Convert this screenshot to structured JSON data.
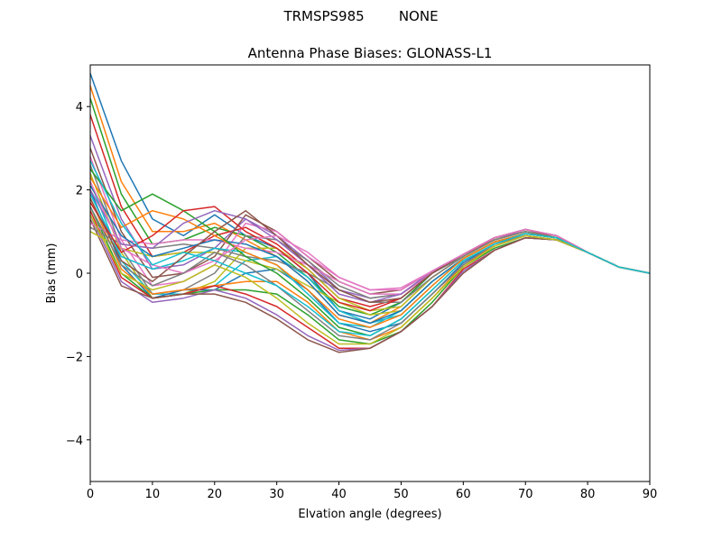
{
  "figure": {
    "suptitle": "TRMSPS985        NONE"
  },
  "chart_data": {
    "type": "line",
    "title": "Antenna Phase Biases: GLONASS-L1",
    "xlabel": "Elvation angle (degrees)",
    "ylabel": "Bias (mm)",
    "xlim": [
      0,
      90
    ],
    "ylim": [
      -5,
      5
    ],
    "xticks": [
      0,
      10,
      20,
      30,
      40,
      50,
      60,
      70,
      80,
      90
    ],
    "yticks": [
      -4,
      -2,
      0,
      2,
      4
    ],
    "ytick_labels": [
      "−4",
      "−2",
      "0",
      "2",
      "4"
    ],
    "grid": false,
    "legend": "none",
    "x": [
      0,
      5,
      10,
      15,
      20,
      25,
      30,
      35,
      40,
      45,
      50,
      55,
      60,
      65,
      70,
      75,
      80,
      85,
      90
    ],
    "color_cycle": [
      "#1f77b4",
      "#ff7f0e",
      "#2ca02c",
      "#d62728",
      "#9467bd",
      "#8c564b",
      "#e377c2",
      "#7f7f7f",
      "#bcbd22",
      "#17becf"
    ],
    "series": [
      {
        "values": [
          4.8,
          2.7,
          1.3,
          0.9,
          1.4,
          0.9,
          0.6,
          0.0,
          -0.9,
          -1.1,
          -0.7,
          0.0,
          0.4,
          0.8,
          1.0,
          0.85,
          0.5,
          0.15,
          0.0
        ]
      },
      {
        "values": [
          4.5,
          2.2,
          1.0,
          1.0,
          1.2,
          0.8,
          0.4,
          -0.2,
          -1.0,
          -1.2,
          -0.8,
          -0.1,
          0.4,
          0.8,
          1.0,
          0.85,
          0.5,
          0.15,
          0.0
        ]
      },
      {
        "values": [
          4.2,
          1.9,
          0.7,
          0.8,
          1.1,
          0.9,
          0.5,
          -0.1,
          -0.8,
          -1.0,
          -0.7,
          0.0,
          0.45,
          0.8,
          1.0,
          0.85,
          0.5,
          0.15,
          0.0
        ]
      },
      {
        "values": [
          3.8,
          1.6,
          0.4,
          0.5,
          0.9,
          1.1,
          0.7,
          0.1,
          -0.6,
          -0.8,
          -0.6,
          0.0,
          0.45,
          0.8,
          1.0,
          0.85,
          0.5,
          0.15,
          0.0
        ]
      },
      {
        "values": [
          3.3,
          1.3,
          0.1,
          0.2,
          0.6,
          1.3,
          0.9,
          0.3,
          -0.4,
          -0.6,
          -0.5,
          0.05,
          0.45,
          0.85,
          1.0,
          0.85,
          0.5,
          0.15,
          0.0
        ]
      },
      {
        "values": [
          3.0,
          1.0,
          -0.1,
          0.0,
          0.4,
          1.4,
          1.0,
          0.4,
          -0.2,
          -0.5,
          -0.4,
          0.05,
          0.45,
          0.85,
          1.05,
          0.85,
          0.5,
          0.15,
          0.0
        ]
      },
      {
        "values": [
          2.8,
          0.8,
          -0.3,
          -0.2,
          0.2,
          1.2,
          1.0,
          0.4,
          -0.1,
          -0.4,
          -0.35,
          0.05,
          0.45,
          0.85,
          1.05,
          0.9,
          0.5,
          0.15,
          0.0
        ]
      },
      {
        "values": [
          2.6,
          0.6,
          -0.5,
          -0.4,
          0.0,
          0.9,
          0.8,
          0.3,
          -0.3,
          -0.6,
          -0.5,
          0.0,
          0.4,
          0.8,
          1.0,
          0.85,
          0.5,
          0.15,
          0.0
        ]
      },
      {
        "values": [
          2.4,
          0.5,
          -0.6,
          -0.5,
          -0.2,
          0.6,
          0.6,
          0.1,
          -0.6,
          -0.9,
          -0.8,
          -0.1,
          0.4,
          0.8,
          1.0,
          0.85,
          0.5,
          0.15,
          0.0
        ]
      },
      {
        "values": [
          2.2,
          0.3,
          -0.5,
          -0.5,
          -0.3,
          0.3,
          0.4,
          -0.1,
          -0.9,
          -1.2,
          -1.0,
          -0.3,
          0.35,
          0.75,
          0.95,
          0.85,
          0.5,
          0.15,
          0.0
        ]
      },
      {
        "values": [
          2.0,
          0.2,
          -0.6,
          -0.4,
          -0.4,
          0.0,
          0.1,
          -0.4,
          -1.2,
          -1.4,
          -1.2,
          -0.5,
          0.25,
          0.7,
          0.9,
          0.8,
          0.5,
          0.15,
          0.0
        ]
      },
      {
        "values": [
          1.8,
          0.1,
          -0.5,
          -0.4,
          -0.3,
          -0.2,
          -0.2,
          -0.7,
          -1.4,
          -1.6,
          -1.3,
          -0.6,
          0.2,
          0.65,
          0.9,
          0.8,
          0.5,
          0.15,
          0.0
        ]
      },
      {
        "values": [
          1.6,
          0.0,
          -0.6,
          -0.5,
          -0.4,
          -0.4,
          -0.5,
          -1.0,
          -1.6,
          -1.7,
          -1.4,
          -0.7,
          0.15,
          0.6,
          0.85,
          0.8,
          0.5,
          0.15,
          0.0
        ]
      },
      {
        "values": [
          1.5,
          -0.1,
          -0.6,
          -0.5,
          -0.3,
          -0.5,
          -0.8,
          -1.3,
          -1.8,
          -1.8,
          -1.4,
          -0.8,
          0.1,
          0.55,
          0.85,
          0.8,
          0.5,
          0.15,
          0.0
        ]
      },
      {
        "values": [
          1.4,
          -0.2,
          -0.7,
          -0.6,
          -0.4,
          -0.6,
          -1.0,
          -1.5,
          -1.85,
          -1.8,
          -1.4,
          -0.8,
          0.05,
          0.55,
          0.85,
          0.8,
          0.5,
          0.15,
          0.0
        ]
      },
      {
        "values": [
          1.3,
          -0.3,
          -0.6,
          -0.5,
          -0.5,
          -0.7,
          -1.1,
          -1.6,
          -1.9,
          -1.8,
          -1.4,
          -0.8,
          0.0,
          0.55,
          0.85,
          0.8,
          0.5,
          0.15,
          0.0
        ]
      },
      {
        "values": [
          1.2,
          0.8,
          0.7,
          0.8,
          0.8,
          0.6,
          0.5,
          0.2,
          -0.2,
          -0.5,
          -0.5,
          0.0,
          0.45,
          0.85,
          1.05,
          0.9,
          0.5,
          0.15,
          0.0
        ]
      },
      {
        "values": [
          1.1,
          0.7,
          0.6,
          0.7,
          0.6,
          0.4,
          0.3,
          0.0,
          -0.4,
          -0.7,
          -0.7,
          -0.1,
          0.4,
          0.8,
          1.0,
          0.85,
          0.5,
          0.15,
          0.0
        ]
      },
      {
        "values": [
          1.0,
          0.6,
          0.4,
          0.5,
          0.5,
          0.3,
          0.1,
          -0.3,
          -0.7,
          -1.0,
          -0.9,
          -0.2,
          0.35,
          0.75,
          0.95,
          0.85,
          0.5,
          0.15,
          0.0
        ]
      },
      {
        "values": [
          1.9,
          0.4,
          0.1,
          0.3,
          0.6,
          0.5,
          0.2,
          -0.5,
          -1.2,
          -1.3,
          -0.9,
          -0.2,
          0.35,
          0.75,
          0.95,
          0.85,
          0.5,
          0.15,
          0.0
        ]
      },
      {
        "values": [
          2.1,
          0.9,
          0.4,
          0.6,
          0.8,
          0.7,
          0.4,
          -0.2,
          -1.0,
          -1.2,
          -0.9,
          -0.2,
          0.35,
          0.75,
          0.95,
          0.85,
          0.5,
          0.15,
          0.0
        ]
      },
      {
        "values": [
          2.3,
          1.1,
          1.5,
          1.3,
          0.9,
          0.5,
          0.2,
          -0.4,
          -1.1,
          -1.3,
          -1.0,
          -0.3,
          0.35,
          0.75,
          0.95,
          0.85,
          0.5,
          0.15,
          0.0
        ]
      },
      {
        "values": [
          2.5,
          1.5,
          1.9,
          1.5,
          1.0,
          0.4,
          0.0,
          -0.6,
          -1.3,
          -1.5,
          -1.1,
          -0.4,
          0.3,
          0.7,
          0.95,
          0.85,
          0.5,
          0.15,
          0.0
        ]
      },
      {
        "values": [
          1.7,
          0.5,
          0.9,
          1.5,
          1.6,
          1.0,
          0.6,
          0.0,
          -0.7,
          -0.9,
          -0.6,
          0.0,
          0.45,
          0.85,
          1.05,
          0.9,
          0.5,
          0.15,
          0.0
        ]
      },
      {
        "values": [
          2.0,
          0.7,
          0.6,
          1.2,
          1.5,
          1.3,
          0.8,
          0.2,
          -0.5,
          -0.7,
          -0.5,
          0.05,
          0.45,
          0.85,
          1.05,
          0.9,
          0.5,
          0.15,
          0.0
        ]
      },
      {
        "values": [
          1.8,
          0.3,
          -0.2,
          0.4,
          1.0,
          1.5,
          0.9,
          0.2,
          -0.4,
          -0.7,
          -0.6,
          0.0,
          0.45,
          0.85,
          1.05,
          0.9,
          0.5,
          0.15,
          0.0
        ]
      },
      {
        "values": [
          2.2,
          0.6,
          0.2,
          0.0,
          0.3,
          0.8,
          0.9,
          0.5,
          -0.1,
          -0.4,
          -0.4,
          0.05,
          0.45,
          0.85,
          1.05,
          0.9,
          0.5,
          0.15,
          0.0
        ]
      },
      {
        "values": [
          1.6,
          0.2,
          -0.3,
          0.0,
          0.5,
          0.2,
          -0.3,
          -0.9,
          -1.5,
          -1.6,
          -1.2,
          -0.5,
          0.2,
          0.7,
          0.9,
          0.8,
          0.5,
          0.15,
          0.0
        ]
      },
      {
        "values": [
          1.4,
          0.0,
          -0.4,
          -0.2,
          0.2,
          -0.1,
          -0.6,
          -1.2,
          -1.7,
          -1.7,
          -1.3,
          -0.6,
          0.15,
          0.65,
          0.9,
          0.8,
          0.5,
          0.15,
          0.0
        ]
      },
      {
        "values": [
          2.7,
          1.2,
          0.2,
          0.5,
          0.3,
          0.0,
          -0.3,
          -0.8,
          -1.4,
          -1.5,
          -1.1,
          -0.4,
          0.3,
          0.7,
          0.95,
          0.85,
          0.5,
          0.15,
          0.0
        ]
      }
    ]
  }
}
